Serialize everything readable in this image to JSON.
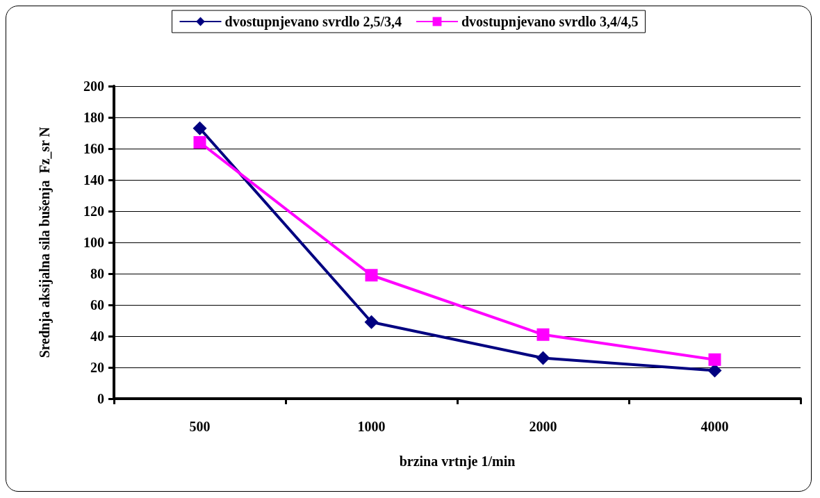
{
  "chart_data": {
    "type": "line",
    "xlabel": "brzina vrtnje 1/min",
    "ylabel": "Srednja aksijalna sila bušenja  Fz_sr N",
    "categories": [
      "500",
      "1000",
      "2000",
      "4000"
    ],
    "series": [
      {
        "name": "dvostupnjevano svrdlo 2,5/3,4",
        "color": "#000080",
        "marker": "diamond",
        "values": [
          173,
          49,
          26,
          18
        ]
      },
      {
        "name": "dvostupnjevano svrdlo 3,4/4,5",
        "color": "#ff00ff",
        "marker": "square",
        "values": [
          164,
          79,
          41,
          25
        ]
      }
    ],
    "ylim": [
      0,
      200
    ],
    "yticks": [
      0,
      20,
      40,
      60,
      80,
      100,
      120,
      140,
      160,
      180,
      200
    ],
    "grid": "y",
    "legend": "top",
    "line_style": "solid"
  }
}
